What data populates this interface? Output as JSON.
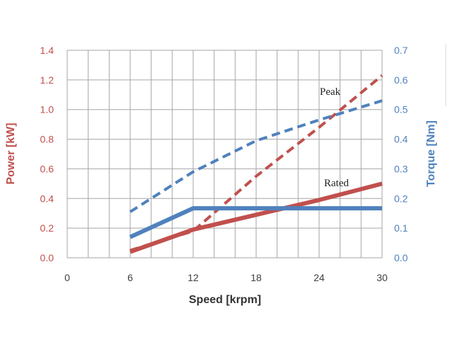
{
  "chart_data": {
    "type": "line",
    "x": [
      6,
      12,
      18,
      24,
      30
    ],
    "xlabel": "Speed [krpm]",
    "ylabel": "Power [kW]",
    "ylabel_right": "Torque [Nm]",
    "xlim": [
      0,
      30
    ],
    "ylim": [
      0,
      1.4
    ],
    "ylim_right": [
      0,
      0.7
    ],
    "xticks": [
      "0",
      "6",
      "12",
      "18",
      "24",
      "30"
    ],
    "yticks": [
      "0.0",
      "0.2",
      "0.4",
      "0.6",
      "0.8",
      "1.0",
      "1.2",
      "1.4"
    ],
    "yticks_right": [
      "0.0",
      "0.1",
      "0.2",
      "0.3",
      "0.4",
      "0.5",
      "0.6",
      "0.7"
    ],
    "grid": true,
    "annotations": [
      "Peak",
      "Rated"
    ],
    "colors": {
      "power": "#c0504d",
      "torque": "#4f81bd",
      "grid": "#a6a6a6"
    },
    "series": [
      {
        "axis": "left",
        "style": "dashed",
        "color": "#c0504d",
        "values": [
          0.05,
          0.18,
          0.55,
          0.88,
          1.23
        ]
      },
      {
        "axis": "right",
        "style": "dashed",
        "color": "#4f81bd",
        "values": [
          0.155,
          0.29,
          0.395,
          0.465,
          0.53
        ]
      },
      {
        "axis": "left",
        "style": "solid",
        "color": "#c0504d",
        "values": [
          0.04,
          0.19,
          0.29,
          0.39,
          0.5
        ]
      },
      {
        "axis": "right",
        "style": "solid",
        "color": "#4f81bd",
        "values": [
          0.07,
          0.167,
          0.167,
          0.167,
          0.167
        ]
      }
    ]
  }
}
